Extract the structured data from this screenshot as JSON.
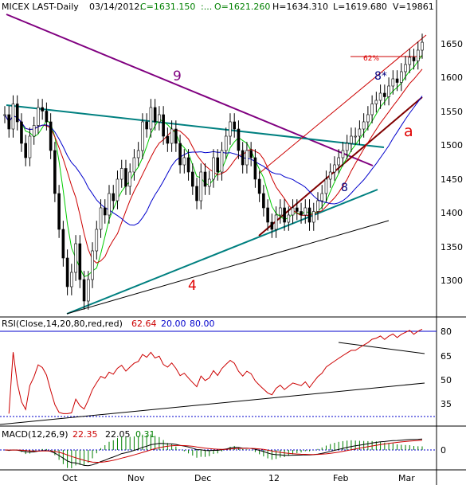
{
  "header": {
    "symbol": "MICEX LAST-Daily",
    "date": "03/14/2012:",
    "close": "C=1631.150",
    "dots": ":...",
    "open": "O=1621.260",
    "high": "H=1634.310",
    "low": "L=1619.680",
    "volume": "V=19861"
  },
  "price_panel": {
    "y_ticks": [
      "1650",
      "1600",
      "1550",
      "1500",
      "1450",
      "1400",
      "1350",
      "1300"
    ],
    "wave_labels": {
      "w9": "9",
      "w4": "4",
      "w8": "8",
      "w8star": "8*",
      "wa": "a"
    },
    "fib_label": "62%"
  },
  "rsi_panel": {
    "title": "RSI(Close,14,20,80,red,red)",
    "value": "62.64",
    "lower": "20.00",
    "upper": "80.00",
    "y_ticks": [
      "80",
      "65",
      "50",
      "35"
    ]
  },
  "macd_panel": {
    "title": "MACD(12,26,9)",
    "macd": "22.35",
    "signal": "22.05",
    "hist": "0.31",
    "y_ticks": [
      "0"
    ]
  },
  "x_ticks": [
    "Oct",
    "Nov",
    "Dec",
    "12",
    "Feb",
    "Mar"
  ],
  "colors": {
    "candle": "#000000",
    "ma_fast": "#00cc00",
    "ma_mid": "#cc0000",
    "ma_slow": "#0000cc",
    "trend_purple": "#800080",
    "trend_teal": "#008080",
    "trend_brown": "#800000",
    "rsi_line": "#cc0000",
    "macd_line": "#000000",
    "macd_signal": "#cc0000",
    "macd_hist": "#008000",
    "label_red": "#e00000"
  },
  "chart_data": [
    {
      "type": "candlestick",
      "title": "MICEX LAST-Daily",
      "x_ticks": [
        "Oct",
        "Nov",
        "Dec",
        "12",
        "Feb",
        "Mar"
      ],
      "ylim": [
        1250,
        1670
      ],
      "y_ticks": [
        1300,
        1350,
        1400,
        1450,
        1500,
        1550,
        1600,
        1650
      ],
      "close": [
        1530,
        1510,
        1545,
        1520,
        1490,
        1470,
        1500,
        1515,
        1540,
        1535,
        1520,
        1480,
        1420,
        1370,
        1330,
        1290,
        1310,
        1350,
        1300,
        1270,
        1300,
        1340,
        1370,
        1400,
        1390,
        1420,
        1410,
        1440,
        1455,
        1430,
        1450,
        1470,
        1480,
        1520,
        1510,
        1540,
        1520,
        1530,
        1500,
        1490,
        1510,
        1490,
        1460,
        1470,
        1450,
        1430,
        1410,
        1450,
        1430,
        1440,
        1470,
        1450,
        1480,
        1500,
        1520,
        1510,
        1480,
        1460,
        1480,
        1470,
        1440,
        1420,
        1400,
        1380,
        1370,
        1390,
        1400,
        1380,
        1390,
        1400,
        1395,
        1390,
        1400,
        1380,
        1395,
        1410,
        1420,
        1440,
        1450,
        1460,
        1470,
        1480,
        1490,
        1500,
        1500,
        1510,
        1520,
        1530,
        1545,
        1550,
        1560,
        1555,
        1570,
        1580,
        1575,
        1590,
        1600,
        1610,
        1605,
        1620,
        1631
      ]
    },
    {
      "type": "line",
      "title": "RSI(Close,14,20,80,red,red)",
      "value": 62.64,
      "levels": [
        20,
        80
      ],
      "y_ticks": [
        35,
        50,
        65,
        80
      ],
      "ylim": [
        20,
        90
      ]
    },
    {
      "type": "line",
      "title": "MACD(12,26,9)",
      "macd": 22.35,
      "signal": 22.05,
      "hist": 0.31,
      "y_ticks": [
        0
      ]
    }
  ]
}
